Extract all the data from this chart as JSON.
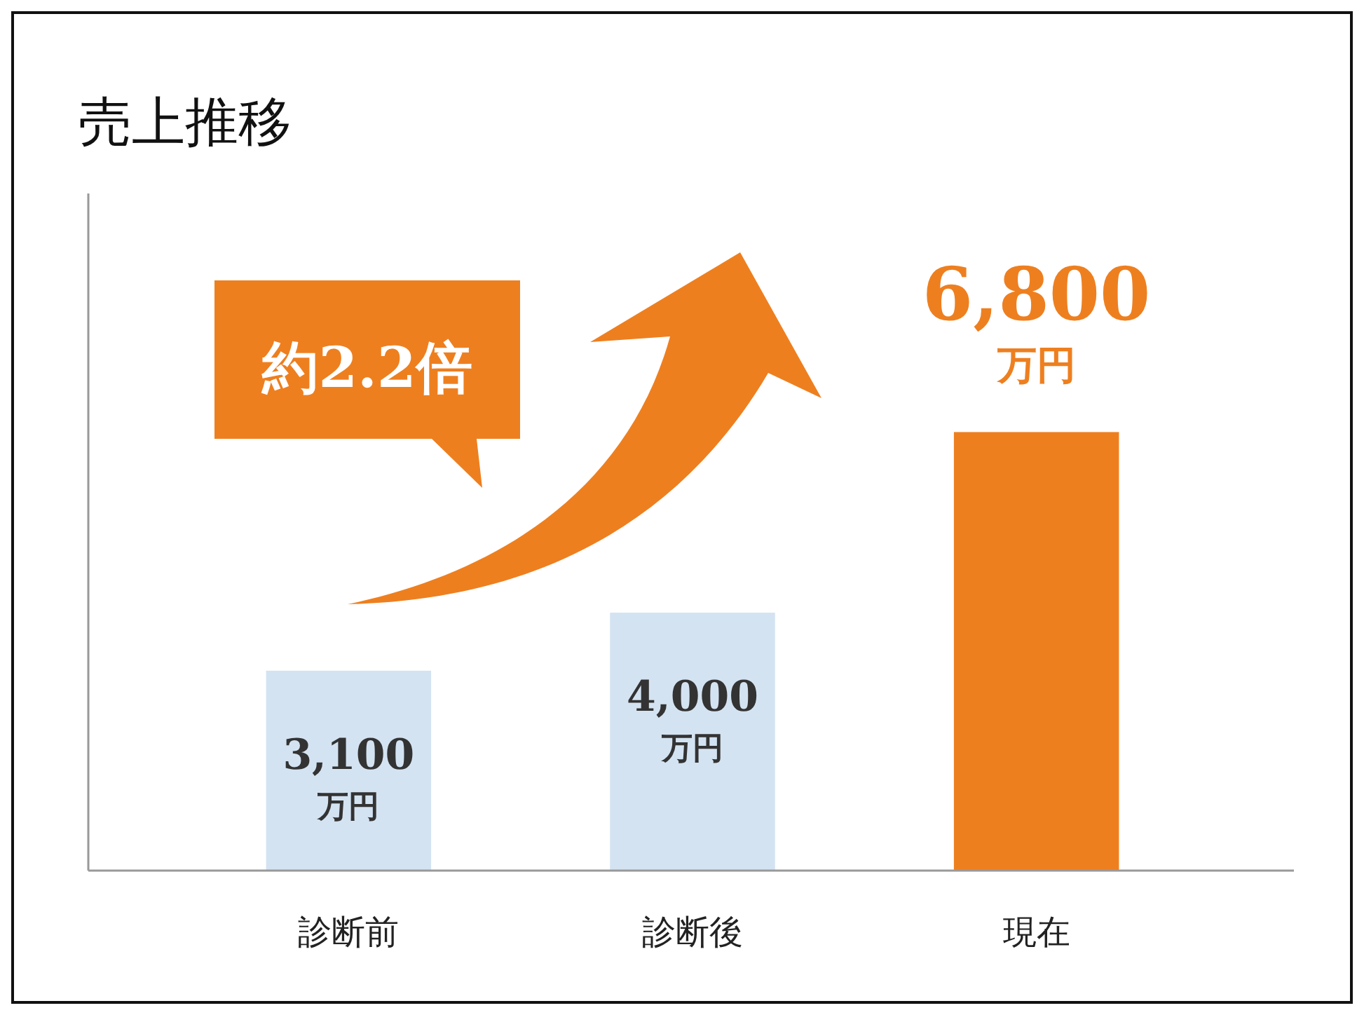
{
  "chart_data": {
    "type": "bar",
    "title": "売上推移",
    "categories": [
      "診断前",
      "診断後",
      "現在"
    ],
    "values": [
      3100,
      4000,
      6800
    ],
    "colors": [
      "#d4e3f2",
      "#d4e3f2",
      "#ee7f1f"
    ],
    "value_labels": [
      "3,100\n万円",
      "4,000\n万円",
      "6,800\n万円"
    ],
    "ylim": [
      0,
      10500
    ],
    "tick_labels": "x",
    "annotations": [
      "約2.2倍"
    ]
  }
}
